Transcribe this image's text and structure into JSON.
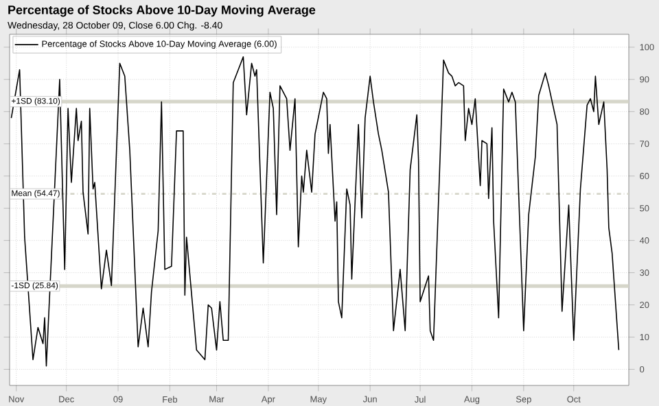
{
  "chart_data": {
    "type": "line",
    "title": "Percentage of Stocks Above 10-Day Moving Average",
    "subtitle": "Wednesday, 28 October 09, Close 6.00  Chg. -8.40",
    "xlim": [
      "2008-10-28",
      "2009-11-03"
    ],
    "ylim": [
      -5,
      104
    ],
    "xticks": [
      {
        "value": "2008-11-01",
        "label": "Nov"
      },
      {
        "value": "2008-12-01",
        "label": "Dec"
      },
      {
        "value": "2009-01-01",
        "label": "09"
      },
      {
        "value": "2009-02-01",
        "label": "Feb"
      },
      {
        "value": "2009-03-01",
        "label": "Mar"
      },
      {
        "value": "2009-04-01",
        "label": "Apr"
      },
      {
        "value": "2009-05-01",
        "label": "May"
      },
      {
        "value": "2009-06-01",
        "label": "Jun"
      },
      {
        "value": "2009-07-01",
        "label": "Jul"
      },
      {
        "value": "2009-08-01",
        "label": "Aug"
      },
      {
        "value": "2009-09-01",
        "label": "Sep"
      },
      {
        "value": "2009-10-01",
        "label": "Oct"
      }
    ],
    "yticks": [
      0,
      10,
      20,
      30,
      40,
      50,
      60,
      70,
      80,
      90,
      100
    ],
    "grid": true,
    "legend": "top left",
    "marker": "none",
    "line_style": "solid",
    "ref_lines": [
      {
        "axis": "y",
        "value": 83.1,
        "label": "+1SD (83.10)",
        "color": "#d6d6ca",
        "line_style": "solid"
      },
      {
        "axis": "y",
        "value": 54.47,
        "label": "Mean (54.47)",
        "color": "#d6d6ca",
        "line_style": "dashed"
      },
      {
        "axis": "y",
        "value": 25.84,
        "label": "-1SD (25.84)",
        "color": "#d6d6ca",
        "line_style": "solid"
      }
    ],
    "series": [
      {
        "name": "Percentage of Stocks Above 10-Day Moving Average (6.00)",
        "color": "#000000",
        "x": [
          "2008-10-29",
          "2008-11-03",
          "2008-11-06",
          "2008-11-11",
          "2008-11-14",
          "2008-11-17",
          "2008-11-18",
          "2008-11-19",
          "2008-11-27",
          "2008-11-30",
          "2008-12-02",
          "2008-12-04",
          "2008-12-07",
          "2008-12-08",
          "2008-12-10",
          "2008-12-11",
          "2008-12-14",
          "2008-12-15",
          "2008-12-17",
          "2008-12-18",
          "2008-12-22",
          "2008-12-25",
          "2008-12-28",
          "2009-01-02",
          "2009-01-05",
          "2009-01-08",
          "2009-01-13",
          "2009-01-16",
          "2009-01-19",
          "2009-01-21",
          "2009-01-25",
          "2009-01-27",
          "2009-01-29",
          "2009-02-02",
          "2009-02-05",
          "2009-02-09",
          "2009-02-10",
          "2009-02-11",
          "2009-02-17",
          "2009-02-22",
          "2009-02-24",
          "2009-02-26",
          "2009-03-01",
          "2009-03-03",
          "2009-03-05",
          "2009-03-08",
          "2009-03-11",
          "2009-03-14",
          "2009-03-17",
          "2009-03-19",
          "2009-03-22",
          "2009-03-24",
          "2009-03-25",
          "2009-03-29",
          "2009-04-02",
          "2009-04-04",
          "2009-04-06",
          "2009-04-08",
          "2009-04-12",
          "2009-04-14",
          "2009-04-17",
          "2009-04-19",
          "2009-04-21",
          "2009-04-22",
          "2009-04-24",
          "2009-04-27",
          "2009-04-29",
          "2009-05-04",
          "2009-05-06",
          "2009-05-07",
          "2009-05-08",
          "2009-05-11",
          "2009-05-12",
          "2009-05-13",
          "2009-05-15",
          "2009-05-18",
          "2009-05-20",
          "2009-05-21",
          "2009-05-25",
          "2009-05-27",
          "2009-05-29",
          "2009-06-01",
          "2009-06-03",
          "2009-06-06",
          "2009-06-08",
          "2009-06-12",
          "2009-06-15",
          "2009-06-19",
          "2009-06-22",
          "2009-06-25",
          "2009-06-29",
          "2009-06-30",
          "2009-07-01",
          "2009-07-06",
          "2009-07-07",
          "2009-07-09",
          "2009-07-15",
          "2009-07-18",
          "2009-07-20",
          "2009-07-22",
          "2009-07-24",
          "2009-07-27",
          "2009-07-28",
          "2009-07-30",
          "2009-08-01",
          "2009-08-03",
          "2009-08-06",
          "2009-08-07",
          "2009-08-10",
          "2009-08-11",
          "2009-08-13",
          "2009-08-14",
          "2009-08-17",
          "2009-08-20",
          "2009-08-23",
          "2009-08-25",
          "2009-08-27",
          "2009-09-01",
          "2009-09-04",
          "2009-09-08",
          "2009-09-10",
          "2009-09-14",
          "2009-09-16",
          "2009-09-21",
          "2009-09-24",
          "2009-09-28",
          "2009-10-01",
          "2009-10-05",
          "2009-10-09",
          "2009-10-11",
          "2009-10-13",
          "2009-10-14",
          "2009-10-16",
          "2009-10-19",
          "2009-10-21",
          "2009-10-22",
          "2009-10-24",
          "2009-10-28"
        ],
        "values": [
          78,
          93,
          41,
          3,
          13,
          8,
          16,
          1,
          90,
          31,
          81,
          58,
          81,
          71,
          77,
          55,
          42,
          81,
          56,
          58,
          25,
          37,
          26,
          95,
          91,
          68,
          7,
          19,
          7,
          24,
          43,
          83,
          31,
          32,
          74,
          74,
          23,
          41,
          6,
          3,
          20,
          19,
          6,
          21,
          9,
          9,
          89,
          93,
          97,
          79,
          95,
          91,
          93,
          33,
          86,
          81,
          48,
          88,
          84,
          68,
          84,
          38,
          60,
          55,
          68,
          55,
          73,
          86,
          84,
          67,
          76,
          46,
          52,
          21,
          16,
          56,
          51,
          28,
          76,
          47,
          78,
          91,
          83,
          73,
          68,
          55,
          12,
          31,
          12,
          62,
          79,
          65,
          21,
          29,
          12,
          9,
          96,
          92,
          91,
          88,
          89,
          88,
          71,
          81,
          76,
          84,
          57,
          71,
          70,
          53,
          75,
          46,
          16,
          87,
          83,
          86,
          83,
          12,
          48,
          66,
          85,
          92,
          88,
          76,
          18,
          51,
          9,
          56,
          82,
          84,
          80,
          91,
          76,
          83,
          62,
          44,
          36,
          6
        ]
      }
    ]
  }
}
